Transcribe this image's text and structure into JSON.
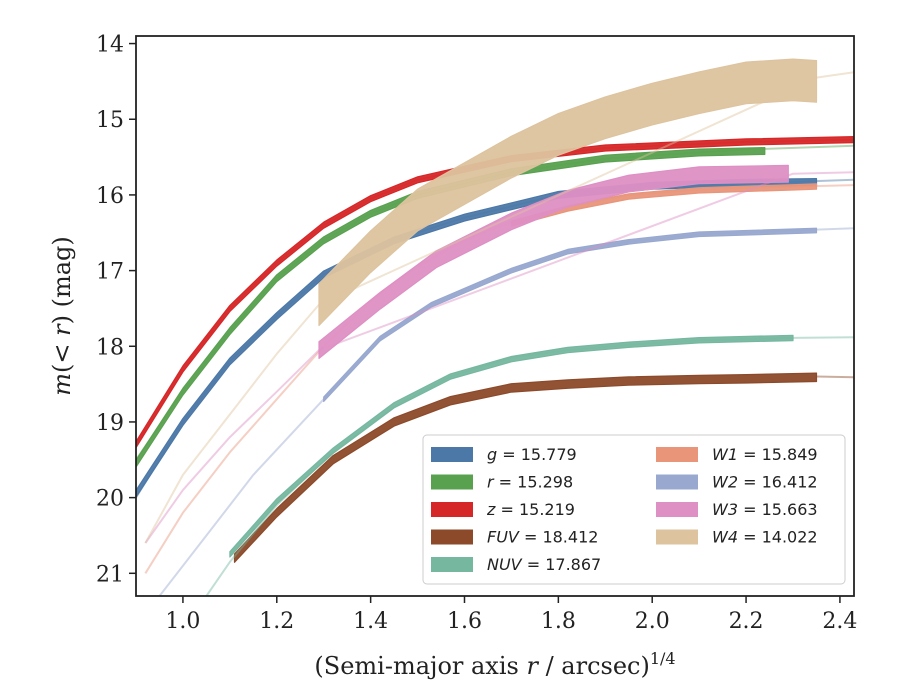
{
  "chart_data": {
    "type": "line",
    "xlabel": "(Semi-major axis r / arcsec)",
    "xlabel_var": "r",
    "xlabel_pre": "(Semi-major axis ",
    "xlabel_post": " / arcsec)",
    "xlabel_sup": "1/4",
    "ylabel_pre": "m(",
    "ylabel_mid": " < r",
    "ylabel_post": ") (mag)",
    "xlim": [
      0.9,
      2.43
    ],
    "ylim": [
      21.3,
      13.9
    ],
    "y_inverted": true,
    "x_ticks": [
      "1.0",
      "1.2",
      "1.4",
      "1.6",
      "1.8",
      "2.0",
      "2.2",
      "2.4"
    ],
    "y_ticks": [
      "14",
      "15",
      "16",
      "17",
      "18",
      "19",
      "20",
      "21"
    ],
    "grid": false,
    "legend_position": "lower-right",
    "series": [
      {
        "name": "g = 15.779",
        "var": "g",
        "value": "15.779",
        "color": "#4c78a8",
        "faint": [
          [
            0.9,
            20.0
          ],
          [
            1.0,
            19.0
          ],
          [
            1.1,
            18.2
          ],
          [
            1.2,
            17.6
          ],
          [
            1.3,
            17.05
          ],
          [
            1.45,
            16.6
          ],
          [
            1.6,
            16.3
          ],
          [
            1.8,
            16.0
          ],
          [
            2.0,
            15.9
          ],
          [
            2.2,
            15.85
          ],
          [
            2.43,
            15.8
          ]
        ],
        "main": [
          [
            0.9,
            19.95
          ],
          [
            1.0,
            19.0
          ],
          [
            1.1,
            18.2
          ],
          [
            1.2,
            17.6
          ],
          [
            1.3,
            17.05
          ],
          [
            1.45,
            16.6
          ],
          [
            1.6,
            16.3
          ],
          [
            1.8,
            16.0
          ],
          [
            2.0,
            15.88
          ],
          [
            2.2,
            15.84
          ],
          [
            2.35,
            15.83
          ]
        ],
        "band": 0.09
      },
      {
        "name": "r = 15.298",
        "var": "r",
        "value": "15.298",
        "color": "#59a14f",
        "faint": [
          [
            0.9,
            19.5
          ],
          [
            1.0,
            18.6
          ],
          [
            1.1,
            17.8
          ],
          [
            1.2,
            17.1
          ],
          [
            1.3,
            16.6
          ],
          [
            1.4,
            16.25
          ],
          [
            1.5,
            16.0
          ],
          [
            1.7,
            15.7
          ],
          [
            1.9,
            15.52
          ],
          [
            2.2,
            15.4
          ],
          [
            2.43,
            15.35
          ]
        ],
        "main": [
          [
            0.9,
            19.55
          ],
          [
            1.0,
            18.6
          ],
          [
            1.1,
            17.8
          ],
          [
            1.2,
            17.1
          ],
          [
            1.3,
            16.6
          ],
          [
            1.4,
            16.25
          ],
          [
            1.5,
            16.0
          ],
          [
            1.7,
            15.7
          ],
          [
            1.9,
            15.52
          ],
          [
            2.1,
            15.44
          ],
          [
            2.24,
            15.42
          ]
        ],
        "band": 0.09
      },
      {
        "name": "z = 15.219",
        "var": "z",
        "value": "15.219",
        "color": "#d62728",
        "faint": [
          [
            0.9,
            19.3
          ],
          [
            1.0,
            18.3
          ],
          [
            1.1,
            17.5
          ],
          [
            1.2,
            16.9
          ],
          [
            1.3,
            16.4
          ],
          [
            1.4,
            16.05
          ],
          [
            1.5,
            15.8
          ],
          [
            1.7,
            15.52
          ],
          [
            1.9,
            15.38
          ],
          [
            2.2,
            15.3
          ],
          [
            2.43,
            15.27
          ]
        ],
        "main": [
          [
            0.9,
            19.3
          ],
          [
            1.0,
            18.3
          ],
          [
            1.1,
            17.5
          ],
          [
            1.2,
            16.9
          ],
          [
            1.3,
            16.4
          ],
          [
            1.4,
            16.05
          ],
          [
            1.5,
            15.8
          ],
          [
            1.7,
            15.52
          ],
          [
            1.9,
            15.38
          ],
          [
            2.2,
            15.3
          ],
          [
            2.43,
            15.27
          ]
        ],
        "band": 0.08
      },
      {
        "name": "FUV = 18.412",
        "var": "FUV",
        "value": "18.412",
        "color": "#8c4a2a",
        "faint": [
          [
            2.35,
            18.4
          ],
          [
            2.43,
            18.41
          ]
        ],
        "main": [
          [
            1.11,
            20.8
          ],
          [
            1.2,
            20.2
          ],
          [
            1.32,
            19.5
          ],
          [
            1.45,
            19.0
          ],
          [
            1.57,
            18.72
          ],
          [
            1.7,
            18.55
          ],
          [
            1.82,
            18.5
          ],
          [
            1.95,
            18.46
          ],
          [
            2.1,
            18.44
          ],
          [
            2.2,
            18.43
          ],
          [
            2.35,
            18.41
          ]
        ],
        "band": 0.11
      },
      {
        "name": "NUV = 17.867",
        "var": "NUV",
        "value": "17.867",
        "color": "#76b7a0",
        "faint": [
          [
            1.05,
            21.3
          ],
          [
            1.1,
            20.85
          ],
          [
            1.2,
            20.1
          ],
          [
            1.32,
            19.4
          ],
          [
            1.45,
            18.8
          ],
          [
            1.57,
            18.4
          ],
          [
            1.7,
            18.15
          ],
          [
            1.82,
            18.05
          ],
          [
            1.95,
            17.98
          ],
          [
            2.1,
            17.92
          ],
          [
            2.3,
            17.89
          ],
          [
            2.43,
            17.88
          ]
        ],
        "main": [
          [
            1.1,
            20.75
          ],
          [
            1.2,
            20.05
          ],
          [
            1.32,
            19.38
          ],
          [
            1.45,
            18.78
          ],
          [
            1.57,
            18.4
          ],
          [
            1.7,
            18.17
          ],
          [
            1.82,
            18.05
          ],
          [
            1.95,
            17.98
          ],
          [
            2.1,
            17.92
          ],
          [
            2.3,
            17.89
          ]
        ],
        "band": 0.07
      },
      {
        "name": "W1 = 15.849",
        "var": "W1",
        "value": "15.849",
        "color": "#e8957a",
        "faint": [
          [
            0.92,
            21.0
          ],
          [
            1.0,
            20.2
          ],
          [
            1.1,
            19.4
          ],
          [
            1.2,
            18.7
          ],
          [
            1.3,
            18.0
          ],
          [
            1.4,
            17.4
          ],
          [
            1.5,
            16.95
          ],
          [
            1.6,
            16.6
          ],
          [
            1.7,
            16.35
          ],
          [
            1.8,
            16.18
          ],
          [
            1.95,
            16.0
          ],
          [
            2.1,
            15.93
          ],
          [
            2.3,
            15.89
          ],
          [
            2.43,
            15.87
          ]
        ],
        "main": [
          [
            1.7,
            16.38
          ],
          [
            1.82,
            16.18
          ],
          [
            1.95,
            16.02
          ],
          [
            2.1,
            15.94
          ],
          [
            2.3,
            15.9
          ],
          [
            2.35,
            15.89
          ]
        ],
        "band": 0.07
      },
      {
        "name": "W2 = 16.412",
        "var": "W2",
        "value": "16.412",
        "color": "#98a8cf",
        "faint": [
          [
            0.95,
            21.3
          ],
          [
            1.05,
            20.5
          ],
          [
            1.15,
            19.7
          ],
          [
            1.3,
            18.7
          ],
          [
            1.42,
            17.9
          ],
          [
            1.53,
            17.45
          ],
          [
            1.7,
            17.0
          ],
          [
            1.82,
            16.75
          ],
          [
            1.95,
            16.62
          ],
          [
            2.1,
            16.52
          ],
          [
            2.3,
            16.47
          ],
          [
            2.43,
            16.44
          ]
        ],
        "main": [
          [
            1.3,
            18.7
          ],
          [
            1.42,
            17.9
          ],
          [
            1.53,
            17.45
          ],
          [
            1.7,
            17.0
          ],
          [
            1.82,
            16.75
          ],
          [
            1.95,
            16.62
          ],
          [
            2.1,
            16.52
          ],
          [
            2.35,
            16.47
          ]
        ],
        "band": 0.06
      },
      {
        "name": "W3 = 15.663",
        "var": "W3",
        "value": "15.663",
        "color": "#de8fc4",
        "faint": [
          [
            0.92,
            20.6
          ],
          [
            1.0,
            19.9
          ],
          [
            1.1,
            19.2
          ],
          [
            1.2,
            18.6
          ],
          [
            1.29,
            18.05
          ],
          [
            2.3,
            15.72
          ],
          [
            2.43,
            15.7
          ]
        ],
        "main": [
          [
            1.29,
            18.05
          ],
          [
            1.42,
            17.4
          ],
          [
            1.54,
            16.85
          ],
          [
            1.7,
            16.35
          ],
          [
            1.82,
            16.05
          ],
          [
            1.95,
            15.85
          ],
          [
            2.1,
            15.74
          ],
          [
            2.29,
            15.72
          ]
        ],
        "band": 0.22
      },
      {
        "name": "W4 = 14.022",
        "var": "W4",
        "value": "14.022",
        "color": "#ddc39e",
        "faint": [
          [
            0.92,
            20.6
          ],
          [
            1.0,
            19.7
          ],
          [
            1.1,
            18.9
          ],
          [
            1.2,
            18.1
          ],
          [
            1.29,
            17.45
          ],
          [
            2.35,
            14.45
          ],
          [
            2.43,
            14.38
          ]
        ],
        "main": [
          [
            1.29,
            17.45
          ],
          [
            1.4,
            16.75
          ],
          [
            1.5,
            16.2
          ],
          [
            1.6,
            15.85
          ],
          [
            1.7,
            15.5
          ],
          [
            1.8,
            15.2
          ],
          [
            1.9,
            14.98
          ],
          [
            2.0,
            14.8
          ],
          [
            2.1,
            14.65
          ],
          [
            2.2,
            14.52
          ],
          [
            2.3,
            14.48
          ],
          [
            2.35,
            14.5
          ]
        ],
        "band": 0.55
      }
    ]
  }
}
